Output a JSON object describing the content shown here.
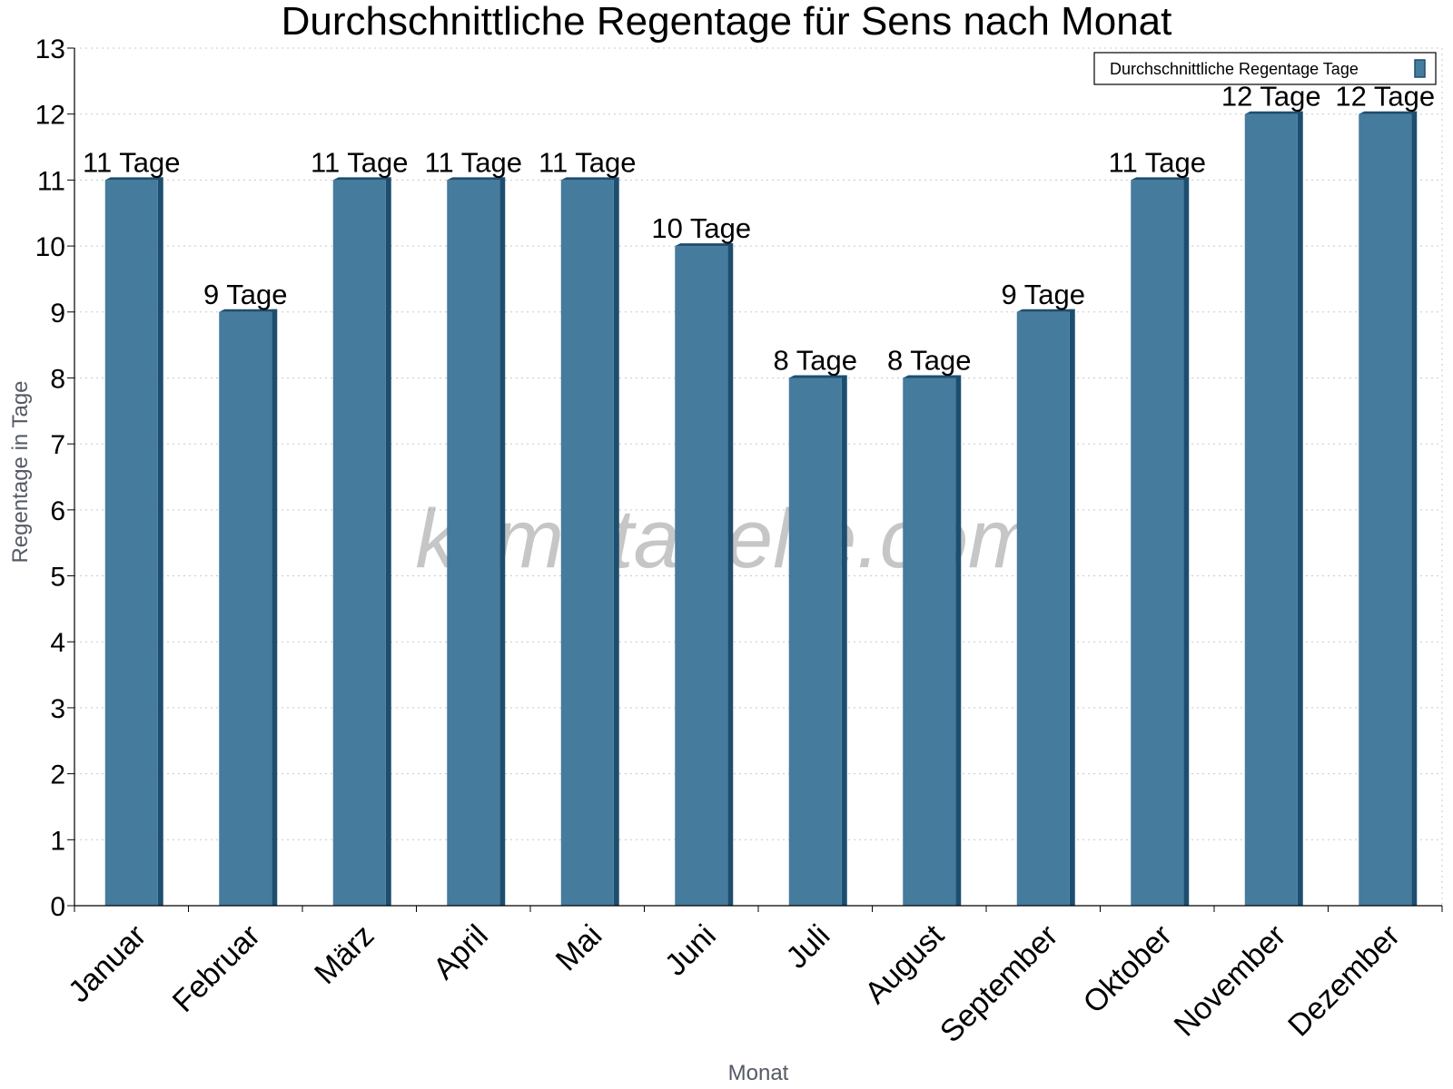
{
  "chart_data": {
    "type": "bar",
    "title": "Durchschnittliche Regentage für Sens nach Monat",
    "xlabel": "Monat",
    "ylabel": "Regentage in Tage",
    "ylim": [
      0,
      13
    ],
    "yticks": [
      0,
      1,
      2,
      3,
      4,
      5,
      6,
      7,
      8,
      9,
      10,
      11,
      12,
      13
    ],
    "grid": true,
    "legend_position": "top-right",
    "categories": [
      "Januar",
      "Februar",
      "März",
      "April",
      "Mai",
      "Juni",
      "Juli",
      "August",
      "September",
      "Oktober",
      "November",
      "Dezember"
    ],
    "series": [
      {
        "name": "Durchschnittliche Regentage Tage",
        "values": [
          11,
          9,
          11,
          11,
          11,
          10,
          8,
          8,
          9,
          11,
          12,
          12
        ],
        "data_labels": [
          "11 Tage",
          "9 Tage",
          "11 Tage",
          "11 Tage",
          "11 Tage",
          "10 Tage",
          "8 Tage",
          "8 Tage",
          "9 Tage",
          "11 Tage",
          "12 Tage",
          "12 Tage"
        ],
        "color": "#457b9d",
        "shadow_color": "#1d4e6f"
      }
    ],
    "watermark": "klimatabelle.com"
  }
}
